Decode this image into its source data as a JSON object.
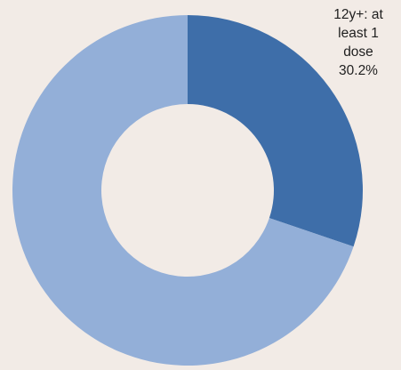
{
  "chart_data": {
    "type": "pie",
    "donut": true,
    "slices": [
      {
        "label_lines": [
          "12y+: at",
          "least 1",
          "dose",
          "30.2%"
        ],
        "value": 30.2,
        "color": "#3e6ea9"
      },
      {
        "value": 69.8,
        "color": "#93afd8"
      }
    ]
  }
}
